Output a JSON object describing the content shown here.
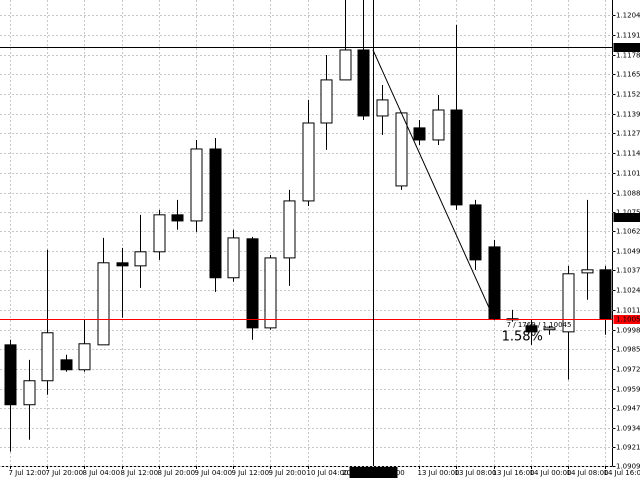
{
  "chart_data": {
    "type": "candlestick",
    "categories": [
      "7 Jul 12:00",
      null,
      "7 Jul 20:00",
      null,
      "8 Jul 04:00",
      null,
      "8 Jul 12:00",
      null,
      "8 Jul 20:00",
      null,
      "9 Jul 04:00",
      null,
      "9 Jul 12:00",
      null,
      "9 Jul 20:00",
      null,
      "10 Jul 04:00",
      null,
      null,
      null,
      null,
      null,
      "13 Jul 00:00",
      null,
      "13 Jul 08:00",
      null,
      "13 Jul 16:00",
      null,
      "14 Jul 00:00",
      null,
      "14 Jul 08:00",
      null,
      "14 Jul 16:00"
    ],
    "open": [
      1.09883,
      1.09491,
      1.09648,
      1.09785,
      1.0972,
      1.09883,
      1.1042,
      1.104,
      1.10492,
      1.10734,
      1.10694,
      1.11165,
      1.10322,
      1.10577,
      1.09994,
      1.10452,
      1.10825,
      1.11335,
      1.11617,
      1.11813,
      1.11381,
      1.10923,
      1.11303,
      1.11224,
      1.1142,
      1.10799,
      1.10524,
      1.10054,
      1.10008,
      1.09982,
      1.09968,
      1.10354,
      1.10374
    ],
    "high": [
      1.09916,
      1.09785,
      1.10505,
      1.09818,
      1.10047,
      1.10583,
      1.10518,
      1.10734,
      1.10766,
      1.10832,
      1.11224,
      1.11237,
      1.10636,
      1.1059,
      1.10472,
      1.10897,
      1.11486,
      1.1178,
      1.1214,
      1.1214,
      1.11584,
      1.11401,
      1.11355,
      1.11518,
      1.11976,
      1.10832,
      1.1057,
      1.10112,
      1.10047,
      1.10008,
      1.104,
      1.10832,
      1.104
    ],
    "low": [
      1.09184,
      1.09262,
      1.09556,
      1.09707,
      1.09707,
      1.09883,
      1.1006,
      1.10256,
      1.10439,
      1.10636,
      1.10622,
      1.1023,
      1.10296,
      1.09916,
      1.09982,
      1.10269,
      1.10792,
      1.11159,
      1.11617,
      1.11355,
      1.11257,
      1.10897,
      1.11191,
      1.11191,
      1.10766,
      1.10374,
      1.10047,
      1.10034,
      1.09883,
      1.09949,
      1.09655,
      1.10178,
      1.09949
    ],
    "close": [
      1.09491,
      1.09648,
      1.09962,
      1.0972,
      1.0989,
      1.1042,
      1.104,
      1.10492,
      1.10734,
      1.10694,
      1.11165,
      1.10322,
      1.10583,
      1.09994,
      1.10452,
      1.10825,
      1.11335,
      1.11617,
      1.11813,
      1.11381,
      1.11486,
      1.11401,
      1.11224,
      1.1142,
      1.10799,
      1.10439,
      1.10054,
      1.10047,
      1.09968,
      1.09994,
      1.10348,
      1.10374,
      1.10054
    ],
    "up_color": "#ffffff",
    "down_color": "#000000",
    "ylim": [
      1.0909,
      1.1214
    ],
    "yticks": [
      {
        "value": 1.1204,
        "label": "1.12040"
      },
      {
        "value": 1.1191,
        "label": "1.11910"
      },
      {
        "value": 1.1178,
        "label": "1.11780"
      },
      1.11655,
      1.11525,
      1.11395,
      {
        "value": 1.1127,
        "label": "1.11270"
      },
      {
        "value": 1.1114,
        "label": "1.11140"
      },
      {
        "value": 1.1101,
        "label": "1.11010"
      },
      {
        "value": 1.1088,
        "label": "1.10880"
      },
      1.10755,
      1.10625,
      1.10495,
      {
        "value": 1.1037,
        "label": "1.10370"
      },
      {
        "value": 1.1024,
        "label": "1.10240"
      },
      {
        "value": 1.1011,
        "label": "1.10110"
      },
      {
        "value": 1.0998,
        "label": "1.09980"
      },
      1.09855,
      1.09725,
      1.09595,
      {
        "value": 1.0947,
        "label": "1.09470"
      },
      {
        "value": 1.0934,
        "label": "1.09340"
      },
      1.09215,
      {
        "value": 1.0909,
        "label": "1.09090"
      }
    ],
    "grid": true,
    "price_lines": [
      {
        "value": 1.1072,
        "label": "1.10720",
        "color": "#000000",
        "line": false
      },
      {
        "value": 1.10053,
        "color": "#ff0000",
        "line": true
      }
    ],
    "crosshair": {
      "time_label": "2015.07.10 20:00",
      "price": 1.11834
    },
    "trendline": {
      "start_index": 19,
      "start_price": 1.11814,
      "end_index": 26,
      "end_price": 1.10045,
      "label": "7 / 1769 / 1.10045",
      "percent_label": "1.58%"
    }
  }
}
